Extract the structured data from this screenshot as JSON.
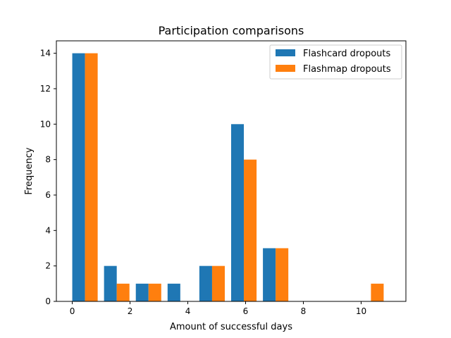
{
  "chart_data": {
    "type": "bar",
    "title": "Participation comparisons",
    "xlabel": "Amount of successful days",
    "ylabel": "Frequency",
    "xlim": [
      -0.55,
      11.55
    ],
    "ylim": [
      0,
      14.7
    ],
    "xticks": [
      0,
      2,
      4,
      6,
      8,
      10
    ],
    "yticks": [
      0,
      2,
      4,
      6,
      8,
      10,
      12,
      14
    ],
    "legend_position": "upper right",
    "grid": false,
    "bin_edges": [
      0,
      1.1,
      2.2,
      3.3,
      4.4,
      5.5,
      6.6,
      7.7,
      8.8,
      9.9,
      11
    ],
    "series": [
      {
        "name": "Flashcard dropouts",
        "color": "#1f77b4",
        "values": [
          14,
          2,
          1,
          1,
          2,
          10,
          3,
          0,
          0,
          0
        ]
      },
      {
        "name": "Flashmap dropouts",
        "color": "#ff7f0e",
        "values": [
          14,
          1,
          1,
          0,
          2,
          8,
          3,
          0,
          0,
          1
        ]
      }
    ]
  }
}
